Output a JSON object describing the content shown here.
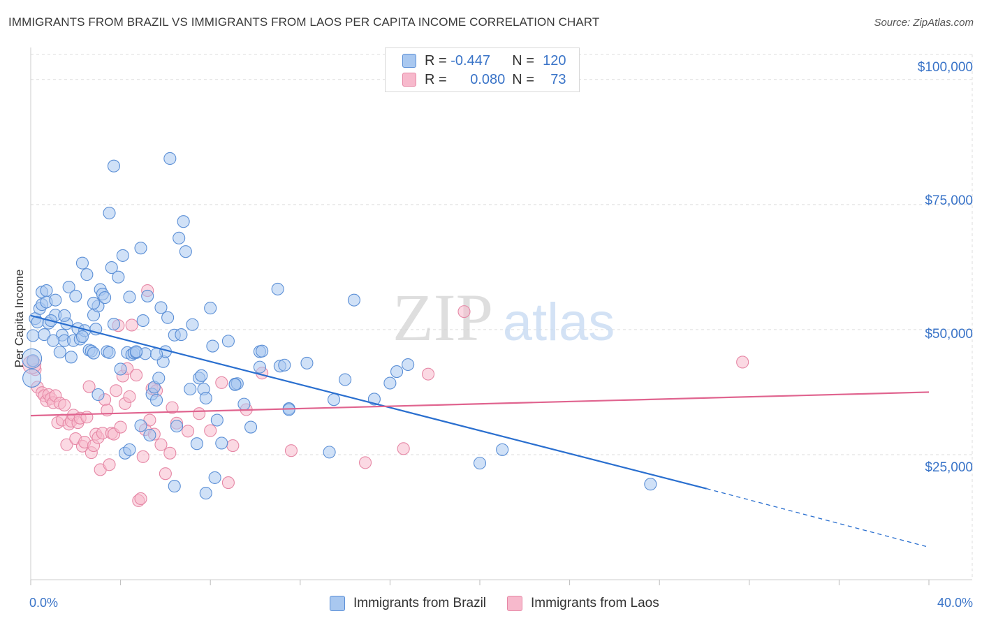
{
  "title": "IMMIGRANTS FROM BRAZIL VS IMMIGRANTS FROM LAOS PER CAPITA INCOME CORRELATION CHART",
  "source": "Source: ZipAtlas.com",
  "watermark": {
    "zip": "ZIP",
    "atlas": "atlas"
  },
  "colors": {
    "brazil_fill": "#a9c8f0",
    "brazil_stroke": "#5b8fd6",
    "brazil_line": "#2a6fcf",
    "laos_fill": "#f7b9cc",
    "laos_stroke": "#e688a6",
    "laos_line": "#e0648f",
    "tick_text": "#3a74c8",
    "grid": "#dddddd"
  },
  "legend_stats": [
    {
      "r_label": "R =",
      "r_value": "-0.447",
      "n_label": "N =",
      "n_value": "120"
    },
    {
      "r_label": "R =",
      "r_value": "0.080",
      "n_label": "N =",
      "n_value": "73"
    }
  ],
  "chart_data": {
    "type": "scatter",
    "title": "IMMIGRANTS FROM BRAZIL VS IMMIGRANTS FROM LAOS PER CAPITA INCOME CORRELATION CHART",
    "xlabel": "",
    "ylabel": "Per Capita Income",
    "xlim": [
      0,
      40
    ],
    "ylim": [
      0,
      105000
    ],
    "x_tick_labels": [
      "0.0%",
      "40.0%"
    ],
    "y_ticks": [
      25000,
      50000,
      75000,
      100000
    ],
    "y_tick_labels": [
      "$25,000",
      "$50,000",
      "$75,000",
      "$100,000"
    ],
    "grid": true,
    "legend_position": "bottom",
    "series": [
      {
        "name": "Immigrants from Brazil",
        "trend": {
          "x": [
            0,
            30.1
          ],
          "y": [
            52800,
            18200
          ],
          "dashed_to": [
            40,
            6500
          ]
        },
        "points": [
          [
            0.1,
            48800
          ],
          [
            0.1,
            43800
          ],
          [
            0.2,
            52200
          ],
          [
            0.3,
            51500
          ],
          [
            0.4,
            54200
          ],
          [
            0.5,
            55000
          ],
          [
            0.5,
            57500
          ],
          [
            0.6,
            49000
          ],
          [
            0.7,
            57800
          ],
          [
            0.7,
            55500
          ],
          [
            0.8,
            51300
          ],
          [
            1.1,
            55900
          ],
          [
            1.1,
            52900
          ],
          [
            1.3,
            45500
          ],
          [
            1.4,
            48900
          ],
          [
            1.5,
            47800
          ],
          [
            1.6,
            51200
          ],
          [
            1.7,
            58500
          ],
          [
            1.8,
            44500
          ],
          [
            1.9,
            47800
          ],
          [
            2.0,
            56700
          ],
          [
            2.1,
            50200
          ],
          [
            2.2,
            48100
          ],
          [
            2.3,
            63300
          ],
          [
            2.4,
            49800
          ],
          [
            2.5,
            61000
          ],
          [
            2.6,
            45900
          ],
          [
            2.7,
            45700
          ],
          [
            2.8,
            45300
          ],
          [
            2.8,
            52900
          ],
          [
            2.9,
            50100
          ],
          [
            3.0,
            54700
          ],
          [
            3.1,
            58000
          ],
          [
            3.2,
            57100
          ],
          [
            3.3,
            56400
          ],
          [
            3.4,
            45600
          ],
          [
            3.5,
            73300
          ],
          [
            3.6,
            62400
          ],
          [
            3.7,
            51100
          ],
          [
            3.7,
            82700
          ],
          [
            3.9,
            60500
          ],
          [
            4.0,
            42100
          ],
          [
            4.1,
            64800
          ],
          [
            4.3,
            45400
          ],
          [
            4.4,
            56500
          ],
          [
            4.5,
            45000
          ],
          [
            4.6,
            45300
          ],
          [
            4.7,
            45400
          ],
          [
            4.9,
            66300
          ],
          [
            5.0,
            51800
          ],
          [
            5.1,
            45200
          ],
          [
            5.2,
            56700
          ],
          [
            5.4,
            37100
          ],
          [
            5.5,
            38500
          ],
          [
            5.6,
            35900
          ],
          [
            5.7,
            40300
          ],
          [
            5.8,
            54400
          ],
          [
            5.9,
            43600
          ],
          [
            6.0,
            45600
          ],
          [
            6.1,
            52400
          ],
          [
            6.2,
            84200
          ],
          [
            6.4,
            48900
          ],
          [
            6.5,
            30700
          ],
          [
            6.6,
            68300
          ],
          [
            6.7,
            49000
          ],
          [
            6.8,
            71600
          ],
          [
            6.9,
            65600
          ],
          [
            7.1,
            38100
          ],
          [
            7.2,
            51000
          ],
          [
            7.4,
            27200
          ],
          [
            7.5,
            40300
          ],
          [
            7.6,
            40800
          ],
          [
            7.7,
            38100
          ],
          [
            7.8,
            36300
          ],
          [
            8.0,
            54300
          ],
          [
            8.1,
            46700
          ],
          [
            8.2,
            20400
          ],
          [
            8.3,
            31900
          ],
          [
            8.5,
            27300
          ],
          [
            8.8,
            47700
          ],
          [
            9.1,
            39100
          ],
          [
            9.2,
            39200
          ],
          [
            9.5,
            35100
          ],
          [
            9.8,
            30500
          ],
          [
            10.2,
            45600
          ],
          [
            10.3,
            45700
          ],
          [
            11.0,
            58100
          ],
          [
            11.1,
            42700
          ],
          [
            11.3,
            42900
          ],
          [
            11.5,
            34200
          ],
          [
            12.3,
            43300
          ],
          [
            13.3,
            25500
          ],
          [
            13.5,
            36000
          ],
          [
            14.0,
            40000
          ],
          [
            14.4,
            55900
          ],
          [
            15.3,
            36100
          ],
          [
            16.0,
            39300
          ],
          [
            16.3,
            41600
          ],
          [
            16.8,
            43000
          ],
          [
            20.0,
            23300
          ],
          [
            21.0,
            26000
          ],
          [
            27.6,
            19100
          ],
          [
            6.4,
            18700
          ],
          [
            7.8,
            17300
          ],
          [
            4.2,
            25300
          ],
          [
            4.4,
            26000
          ],
          [
            5.3,
            28900
          ],
          [
            3.0,
            37000
          ],
          [
            1.0,
            47800
          ],
          [
            2.3,
            48600
          ],
          [
            5.6,
            45100
          ],
          [
            4.7,
            45600
          ],
          [
            3.5,
            45400
          ],
          [
            1.5,
            52800
          ],
          [
            2.8,
            55300
          ],
          [
            0.9,
            51800
          ],
          [
            10.2,
            42500
          ],
          [
            11.5,
            34000
          ],
          [
            9.1,
            39000
          ],
          [
            4.9,
            30800
          ]
        ]
      },
      {
        "name": "Immigrants from Laos",
        "trend": {
          "x": [
            0,
            40
          ],
          "y": [
            32800,
            37500
          ]
        },
        "points": [
          [
            0.1,
            43500
          ],
          [
            0.2,
            42000
          ],
          [
            0.3,
            38500
          ],
          [
            0.5,
            37400
          ],
          [
            0.6,
            36800
          ],
          [
            0.7,
            35800
          ],
          [
            0.8,
            37000
          ],
          [
            0.9,
            36200
          ],
          [
            1.0,
            35400
          ],
          [
            1.1,
            36800
          ],
          [
            1.2,
            31400
          ],
          [
            1.3,
            35300
          ],
          [
            1.4,
            31900
          ],
          [
            1.5,
            34900
          ],
          [
            1.6,
            27000
          ],
          [
            1.7,
            31100
          ],
          [
            1.8,
            31700
          ],
          [
            1.9,
            32900
          ],
          [
            2.0,
            28200
          ],
          [
            2.1,
            31400
          ],
          [
            2.2,
            32300
          ],
          [
            2.3,
            26700
          ],
          [
            2.4,
            27500
          ],
          [
            2.5,
            32500
          ],
          [
            2.6,
            38600
          ],
          [
            2.7,
            25400
          ],
          [
            2.8,
            26800
          ],
          [
            2.9,
            29100
          ],
          [
            3.0,
            28400
          ],
          [
            3.1,
            22000
          ],
          [
            3.2,
            29300
          ],
          [
            3.3,
            36000
          ],
          [
            3.4,
            33900
          ],
          [
            3.5,
            23000
          ],
          [
            3.6,
            29300
          ],
          [
            3.7,
            29100
          ],
          [
            3.8,
            37800
          ],
          [
            3.9,
            50800
          ],
          [
            4.0,
            30500
          ],
          [
            4.1,
            40700
          ],
          [
            4.2,
            35200
          ],
          [
            4.3,
            42200
          ],
          [
            4.4,
            36600
          ],
          [
            4.5,
            50900
          ],
          [
            4.7,
            40900
          ],
          [
            4.8,
            15800
          ],
          [
            4.9,
            16200
          ],
          [
            5.0,
            24600
          ],
          [
            5.1,
            30000
          ],
          [
            5.2,
            57800
          ],
          [
            5.3,
            31900
          ],
          [
            5.4,
            38200
          ],
          [
            5.5,
            29100
          ],
          [
            5.6,
            37800
          ],
          [
            5.8,
            27000
          ],
          [
            6.0,
            21200
          ],
          [
            6.2,
            25300
          ],
          [
            6.3,
            34400
          ],
          [
            6.5,
            31300
          ],
          [
            7.0,
            29700
          ],
          [
            7.5,
            33200
          ],
          [
            8.0,
            29800
          ],
          [
            8.5,
            39400
          ],
          [
            8.8,
            19400
          ],
          [
            9.0,
            26800
          ],
          [
            9.6,
            34000
          ],
          [
            10.3,
            41300
          ],
          [
            11.6,
            25800
          ],
          [
            14.9,
            23400
          ],
          [
            16.6,
            26200
          ],
          [
            17.7,
            41100
          ],
          [
            19.3,
            53600
          ],
          [
            31.7,
            43500
          ]
        ]
      }
    ]
  }
}
